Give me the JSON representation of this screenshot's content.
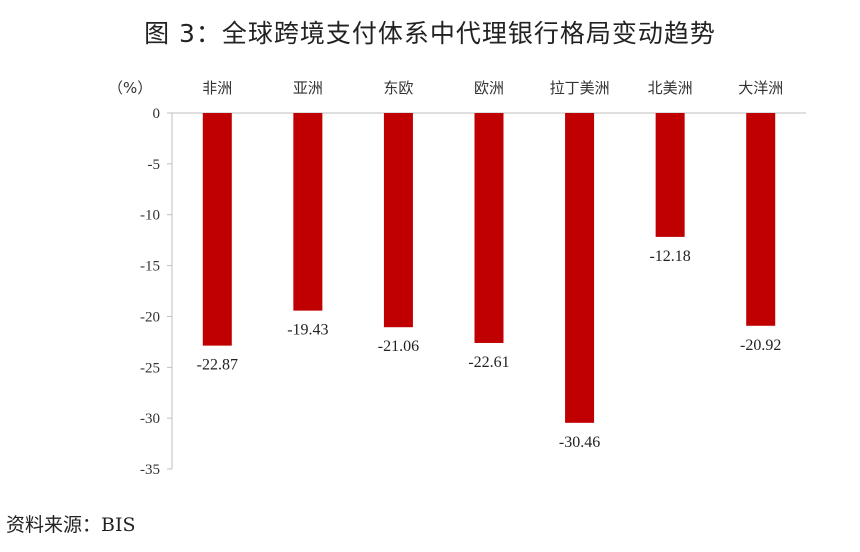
{
  "figure": {
    "title": "图 3：全球跨境支付体系中代理银行格局变动趋势",
    "source": "资料来源：BIS"
  },
  "chart_data": {
    "type": "bar",
    "unit_label": "（%）",
    "categories": [
      "非洲",
      "亚洲",
      "东欧",
      "欧洲",
      "拉丁美洲",
      "北美洲",
      "大洋洲"
    ],
    "values": [
      -22.87,
      -19.43,
      -21.06,
      -22.61,
      -30.46,
      -12.18,
      -20.92
    ],
    "data_labels": [
      "-22.87",
      "-19.43",
      "-21.06",
      "-22.61",
      "-30.46",
      "-12.18",
      "-20.92"
    ],
    "ylim": [
      -35,
      0
    ],
    "yticks": [
      0,
      -5,
      -10,
      -15,
      -20,
      -25,
      -30,
      -35
    ],
    "ytick_labels": [
      "0",
      "-5",
      "-10",
      "-15",
      "-20",
      "-25",
      "-30",
      "-35"
    ],
    "category_axis_position": "top",
    "legend": "none",
    "grid": false,
    "colors": {
      "bar": "#C00000",
      "axis": "#BFBFBF"
    }
  }
}
